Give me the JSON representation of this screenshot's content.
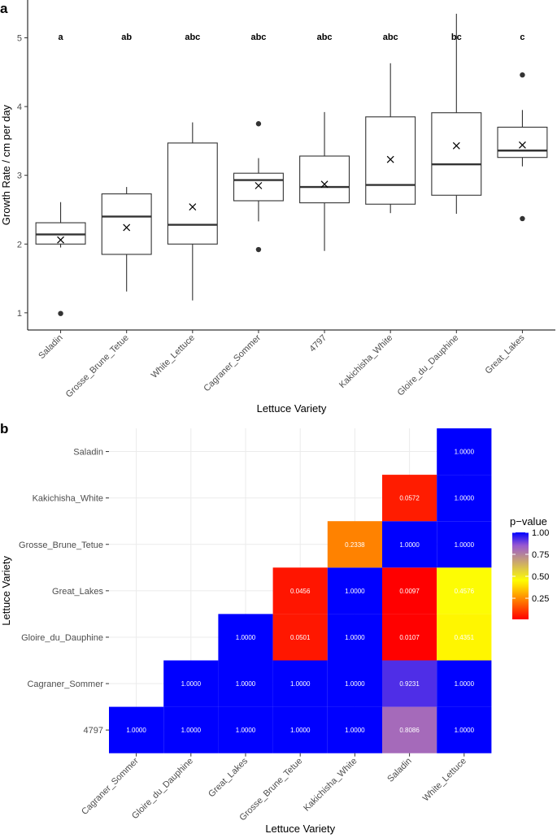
{
  "panels": {
    "a": "a",
    "b": "b"
  },
  "chart_data": [
    {
      "type": "box",
      "xlabel": "Lettuce Variety",
      "ylabel": "Growth Rate / cm per day",
      "ylim": [
        0.75,
        5.55
      ],
      "yticks": [
        1,
        2,
        3,
        4,
        5
      ],
      "categories": [
        "Saladin",
        "Grosse_Brune_Tetue",
        "White_Lettuce",
        "Cagraner_Sommer",
        "4797",
        "Kakichisha_White",
        "Gloire_du_Dauphine",
        "Great_Lakes"
      ],
      "letters": [
        "a",
        "ab",
        "abc",
        "abc",
        "abc",
        "abc",
        "bc",
        "c"
      ],
      "boxes": [
        {
          "q1": 2.0,
          "median": 2.14,
          "q3": 2.31,
          "wlow": 1.95,
          "whigh": 2.61,
          "mean": 2.06,
          "outliers": [
            0.99
          ]
        },
        {
          "q1": 1.85,
          "median": 2.4,
          "q3": 2.73,
          "wlow": 1.31,
          "whigh": 2.83,
          "mean": 2.24,
          "outliers": []
        },
        {
          "q1": 2.0,
          "median": 2.28,
          "q3": 3.47,
          "wlow": 1.18,
          "whigh": 3.77,
          "mean": 2.54,
          "outliers": []
        },
        {
          "q1": 2.63,
          "median": 2.93,
          "q3": 3.03,
          "wlow": 2.33,
          "whigh": 3.25,
          "mean": 2.85,
          "outliers": [
            3.75,
            1.92
          ]
        },
        {
          "q1": 2.6,
          "median": 2.83,
          "q3": 3.28,
          "wlow": 1.9,
          "whigh": 3.92,
          "mean": 2.87,
          "outliers": []
        },
        {
          "q1": 2.58,
          "median": 2.86,
          "q3": 3.85,
          "wlow": 2.45,
          "whigh": 4.63,
          "mean": 3.23,
          "outliers": []
        },
        {
          "q1": 2.71,
          "median": 3.16,
          "q3": 3.91,
          "wlow": 2.44,
          "whigh": 5.35,
          "mean": 3.43,
          "outliers": []
        },
        {
          "q1": 3.26,
          "median": 3.36,
          "q3": 3.7,
          "wlow": 3.13,
          "whigh": 3.95,
          "mean": 3.44,
          "outliers": [
            4.46,
            2.37
          ]
        }
      ]
    },
    {
      "type": "heatmap",
      "xlabel": "Lettuce Variety",
      "ylabel": "Lettuce Variety",
      "x_categories": [
        "Cagraner_Sommer",
        "Gloire_du_Dauphine",
        "Great_Lakes",
        "Grosse_Brune_Tetue",
        "Kakichisha_White",
        "Saladin",
        "White_Lettuce"
      ],
      "y_categories": [
        "4797",
        "Cagraner_Sommer",
        "Gloire_du_Dauphine",
        "Great_Lakes",
        "Grosse_Brune_Tetue",
        "Kakichisha_White",
        "Saladin"
      ],
      "cells": [
        {
          "x": 0,
          "y": 0,
          "v": 1.0,
          "label": "1.0000"
        },
        {
          "x": 1,
          "y": 0,
          "v": 1.0,
          "label": "1.0000"
        },
        {
          "x": 2,
          "y": 0,
          "v": 1.0,
          "label": "1.0000"
        },
        {
          "x": 3,
          "y": 0,
          "v": 1.0,
          "label": "1.0000"
        },
        {
          "x": 4,
          "y": 0,
          "v": 1.0,
          "label": "1.0000"
        },
        {
          "x": 5,
          "y": 0,
          "v": 0.8086,
          "label": "0.8086"
        },
        {
          "x": 6,
          "y": 0,
          "v": 1.0,
          "label": "1.0000"
        },
        {
          "x": 1,
          "y": 1,
          "v": 1.0,
          "label": "1.0000"
        },
        {
          "x": 2,
          "y": 1,
          "v": 1.0,
          "label": "1.0000"
        },
        {
          "x": 3,
          "y": 1,
          "v": 1.0,
          "label": "1.0000"
        },
        {
          "x": 4,
          "y": 1,
          "v": 1.0,
          "label": "1.0000"
        },
        {
          "x": 5,
          "y": 1,
          "v": 0.9231,
          "label": "0.9231"
        },
        {
          "x": 6,
          "y": 1,
          "v": 1.0,
          "label": "1.0000"
        },
        {
          "x": 2,
          "y": 2,
          "v": 1.0,
          "label": "1.0000"
        },
        {
          "x": 3,
          "y": 2,
          "v": 0.0501,
          "label": "0.0501"
        },
        {
          "x": 4,
          "y": 2,
          "v": 1.0,
          "label": "1.0000"
        },
        {
          "x": 5,
          "y": 2,
          "v": 0.0107,
          "label": "0.0107"
        },
        {
          "x": 6,
          "y": 2,
          "v": 0.4351,
          "label": "0.4351"
        },
        {
          "x": 3,
          "y": 3,
          "v": 0.0456,
          "label": "0.0456"
        },
        {
          "x": 4,
          "y": 3,
          "v": 1.0,
          "label": "1.0000"
        },
        {
          "x": 5,
          "y": 3,
          "v": 0.0097,
          "label": "0.0097"
        },
        {
          "x": 6,
          "y": 3,
          "v": 0.4576,
          "label": "0.4576"
        },
        {
          "x": 4,
          "y": 4,
          "v": 0.2338,
          "label": "0.2338"
        },
        {
          "x": 5,
          "y": 4,
          "v": 1.0,
          "label": "1.0000"
        },
        {
          "x": 6,
          "y": 4,
          "v": 1.0,
          "label": "1.0000"
        },
        {
          "x": 5,
          "y": 5,
          "v": 0.0572,
          "label": "0.0572"
        },
        {
          "x": 6,
          "y": 5,
          "v": 1.0,
          "label": "1.0000"
        },
        {
          "x": 6,
          "y": 6,
          "v": 1.0,
          "label": "1.0000"
        }
      ],
      "legend": {
        "title": "p−value",
        "ticks": [
          1.0,
          0.75,
          0.5,
          0.25
        ],
        "tick_labels": [
          "1.00",
          "0.75",
          "0.50",
          "0.25"
        ],
        "range": [
          0.0097,
          1.0
        ]
      },
      "colors": {
        "low": "#ff0000",
        "mid_low": "#ffff00",
        "mid_high": "#9b59d0",
        "high": "#0000ff"
      }
    }
  ]
}
